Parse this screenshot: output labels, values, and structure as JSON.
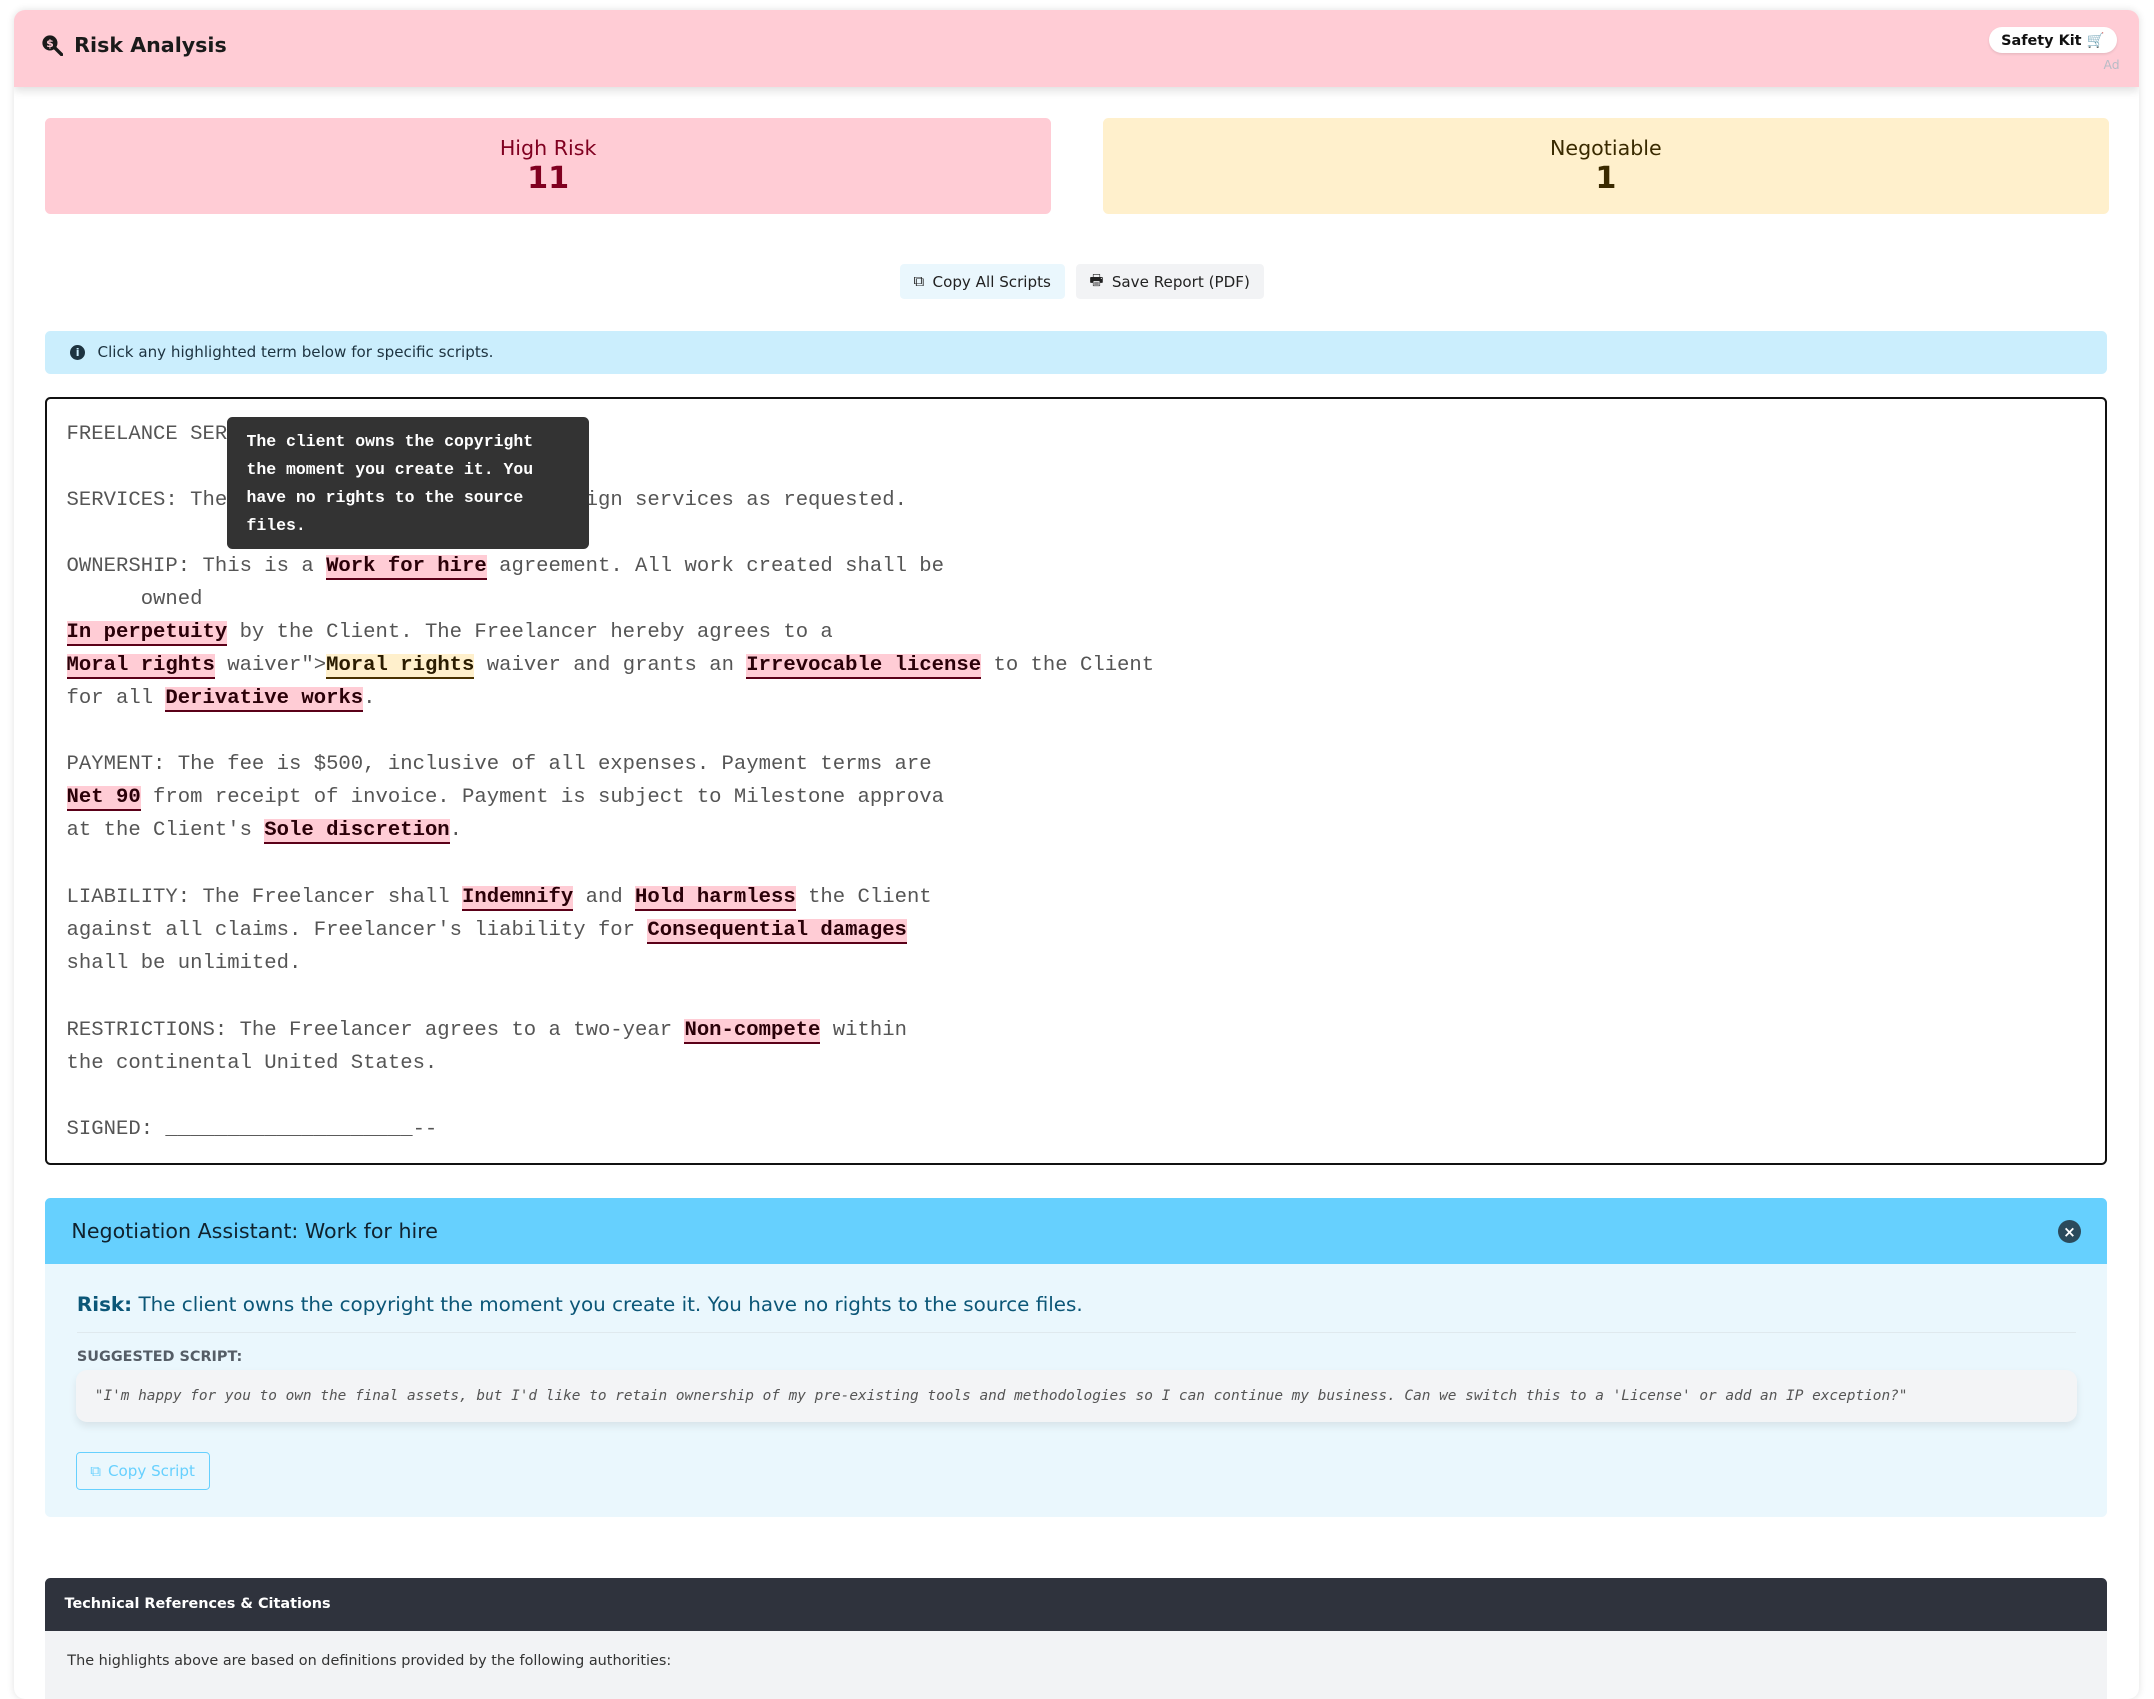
{
  "header": {
    "title": "Risk Analysis",
    "icon": "magnifier-dollar-icon",
    "safety_kit": "Safety Kit",
    "ad_label": "Ad"
  },
  "stats": {
    "high_risk": {
      "label": "High Risk",
      "value": "11",
      "bg": "#ffccd5",
      "color": "#800020"
    },
    "negotiable": {
      "label": "Negotiable",
      "value": "1",
      "bg": "#fff0cc",
      "color": "#3a2a00"
    }
  },
  "toolbar": {
    "copy_all": "Copy All Scripts",
    "save_report": "Save Report (PDF)"
  },
  "info": {
    "text": "Click any highlighted term below for specific scripts."
  },
  "document": {
    "l1": "FREELANCE SER",
    "l2a": "SERVICES: The",
    "l2b": "ign services as requested.",
    "l3a": "OWNERSHIP: This is a ",
    "t_work_for_hire": "Work for hire",
    "l3b": " agreement. All work created shall be",
    "l4": "      owned",
    "t_in_perpetuity": "In perpetuity",
    "l5b": " by the Client. The Freelancer hereby agrees to a",
    "t_moral_rights_1": "Moral rights",
    "l6a": " waiver\">",
    "t_moral_rights_2": "Moral rights",
    "l6b": " waiver and grants an ",
    "t_irrevocable": "Irrevocable license",
    "l6c": " to the Client",
    "l7a": "for all ",
    "t_derivative": "Derivative works",
    "l7b": ".",
    "l8": "PAYMENT: The fee is $500, inclusive of all expenses. Payment terms are",
    "t_net90": "Net 90",
    "l9b": " from receipt of invoice. Payment is subject to Milestone approva",
    "l10a": "at the Client's ",
    "t_sole": "Sole discretion",
    "l10b": ".",
    "l11a": "LIABILITY: The Freelancer shall ",
    "t_indemnify": "Indemnify",
    "l11b": " and ",
    "t_hold": "Hold harmless",
    "l11c": " the Client",
    "l12a": "against all claims. Freelancer's liability for ",
    "t_consequential": "Consequential damages",
    "l13": "shall be unlimited.",
    "l14a": "RESTRICTIONS: The Freelancer agrees to a two-year ",
    "t_noncompete": "Non-compete",
    "l14b": " within",
    "l15": "the continental United States.",
    "l16": "SIGNED: ____________________--",
    "tooltip": "The client owns the copyright the moment you create it. You have no rights to the source files."
  },
  "negotiation": {
    "title": "Negotiation Assistant: Work for hire",
    "risk_label": "Risk:",
    "risk_text": " The client owns the copyright the moment you create it. You have no rights to the source files.",
    "suggested_label": "SUGGESTED SCRIPT:",
    "script": "\"I'm happy for you to own the final assets, but I'd like to retain ownership of my pre-existing tools and methodologies so I can continue my business. Can we switch this to a 'License' or add an IP exception?\"",
    "copy_label": "Copy Script"
  },
  "references": {
    "title": "Technical References & Citations",
    "text": "The highlights above are based on definitions provided by the following authorities:"
  }
}
